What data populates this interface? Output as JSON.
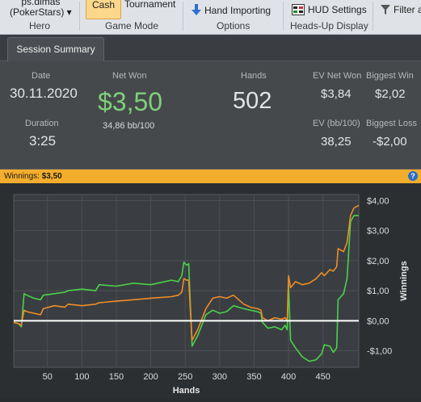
{
  "ribbon": {
    "hero_site_line1": "ps.dimas",
    "hero_site_line2": "(PokerStars) ▾",
    "hero_group": "Hero",
    "cash_label": "Cash",
    "tournament_label": "Tournament",
    "game_mode_group": "Game Mode",
    "hand_importing_label": "Hand Importing",
    "options_group": "Options",
    "hud_settings_label": "HUD Settings",
    "headsup_group": "Heads-Up Display",
    "filter_label": "Filter a"
  },
  "tabs": [
    {
      "label": "Session Summary"
    }
  ],
  "summary": {
    "date_label": "Date",
    "date_value": "30.11.2020",
    "duration_label": "Duration",
    "duration_value": "3:25",
    "net_won_label": "Net Won",
    "net_won_value": "$3,50",
    "bb_value": "34,86 bb/100",
    "hands_label": "Hands",
    "hands_value": "502",
    "ev_net_won_label": "EV Net Won",
    "ev_net_won_value": "$3,84",
    "biggest_win_label": "Biggest Win",
    "biggest_win_value": "$2,02",
    "ev_bb_label": "EV (bb/100)",
    "ev_bb_value": "38,25",
    "biggest_loss_label": "Biggest Loss",
    "biggest_loss_value": "-$2,00"
  },
  "winnings_bar": {
    "label": "Winnings:",
    "value": "$3,50",
    "help": "?"
  },
  "colors": {
    "net_won_green": "#7ed07a",
    "accent_orange": "#f3ad2d",
    "line_green": "#4ad24a",
    "line_orange": "#f08c28",
    "zero_line": "#ffffff"
  },
  "chart_data": {
    "type": "line",
    "xlabel": "Hands",
    "ylabel": "Winnings",
    "xlim": [
      1,
      502
    ],
    "ylim": [
      -1.55,
      4.2
    ],
    "xticks": [
      50,
      100,
      150,
      200,
      250,
      300,
      350,
      400,
      450
    ],
    "xtick_labels": [
      "50",
      "100",
      "150",
      "200",
      "250",
      "300",
      "350",
      "400",
      "450"
    ],
    "yticks": [
      4,
      3,
      2,
      1,
      0,
      -1
    ],
    "ytick_labels": [
      "$4,00",
      "$3,00",
      "$2,00",
      "$1,00",
      "$0,00",
      "-$1,00"
    ],
    "grid": true,
    "series": [
      {
        "color": "#4ad24a",
        "x": [
          1,
          8,
          12,
          16,
          20,
          30,
          40,
          44,
          60,
          75,
          80,
          100,
          120,
          125,
          150,
          175,
          200,
          230,
          240,
          245,
          248,
          252,
          255,
          260,
          268,
          280,
          290,
          300,
          310,
          320,
          335,
          345,
          355,
          360,
          362,
          370,
          380,
          390,
          395,
          398,
          400,
          403,
          410,
          420,
          430,
          440,
          448,
          452,
          460,
          465,
          470,
          472,
          480,
          485,
          490,
          495,
          502
        ],
        "y": [
          -0.05,
          -0.1,
          -0.2,
          0.9,
          0.85,
          0.75,
          0.7,
          0.85,
          0.9,
          0.95,
          1.0,
          1.05,
          1.0,
          1.2,
          1.15,
          1.25,
          1.2,
          1.35,
          1.3,
          1.5,
          1.95,
          1.85,
          1.9,
          -0.85,
          -0.5,
          0.2,
          0.35,
          0.25,
          0.3,
          0.5,
          0.4,
          0.35,
          0.3,
          0.25,
          -0.05,
          -0.25,
          -0.2,
          -0.3,
          -0.15,
          -0.3,
          1.2,
          -0.65,
          -0.9,
          -1.2,
          -1.35,
          -1.3,
          -1.1,
          -0.8,
          -0.85,
          -1.05,
          -0.9,
          0.7,
          0.9,
          1.4,
          3.3,
          3.5,
          3.5
        ]
      },
      {
        "color": "#f08c28",
        "x": [
          1,
          8,
          12,
          16,
          20,
          30,
          40,
          44,
          60,
          75,
          80,
          100,
          120,
          125,
          150,
          175,
          200,
          230,
          240,
          245,
          248,
          252,
          255,
          260,
          268,
          280,
          290,
          300,
          310,
          320,
          335,
          345,
          355,
          360,
          362,
          370,
          380,
          390,
          395,
          398,
          400,
          403,
          410,
          420,
          430,
          440,
          448,
          452,
          460,
          465,
          470,
          472,
          480,
          485,
          490,
          495,
          502
        ],
        "y": [
          -0.05,
          -0.1,
          -0.15,
          0.35,
          0.3,
          0.25,
          0.2,
          0.4,
          0.5,
          0.45,
          0.55,
          0.5,
          0.55,
          0.6,
          0.65,
          0.7,
          0.75,
          0.8,
          0.85,
          0.95,
          1.4,
          1.35,
          1.35,
          -0.65,
          -0.3,
          0.4,
          0.75,
          0.8,
          0.75,
          0.85,
          0.55,
          0.45,
          0.4,
          0.35,
          0.1,
          0.0,
          0.1,
          0.05,
          0.1,
          0.0,
          1.5,
          1.1,
          1.3,
          1.2,
          1.25,
          1.4,
          1.6,
          1.5,
          1.7,
          1.65,
          1.8,
          2.4,
          2.3,
          2.6,
          3.5,
          3.75,
          3.84
        ]
      }
    ]
  }
}
